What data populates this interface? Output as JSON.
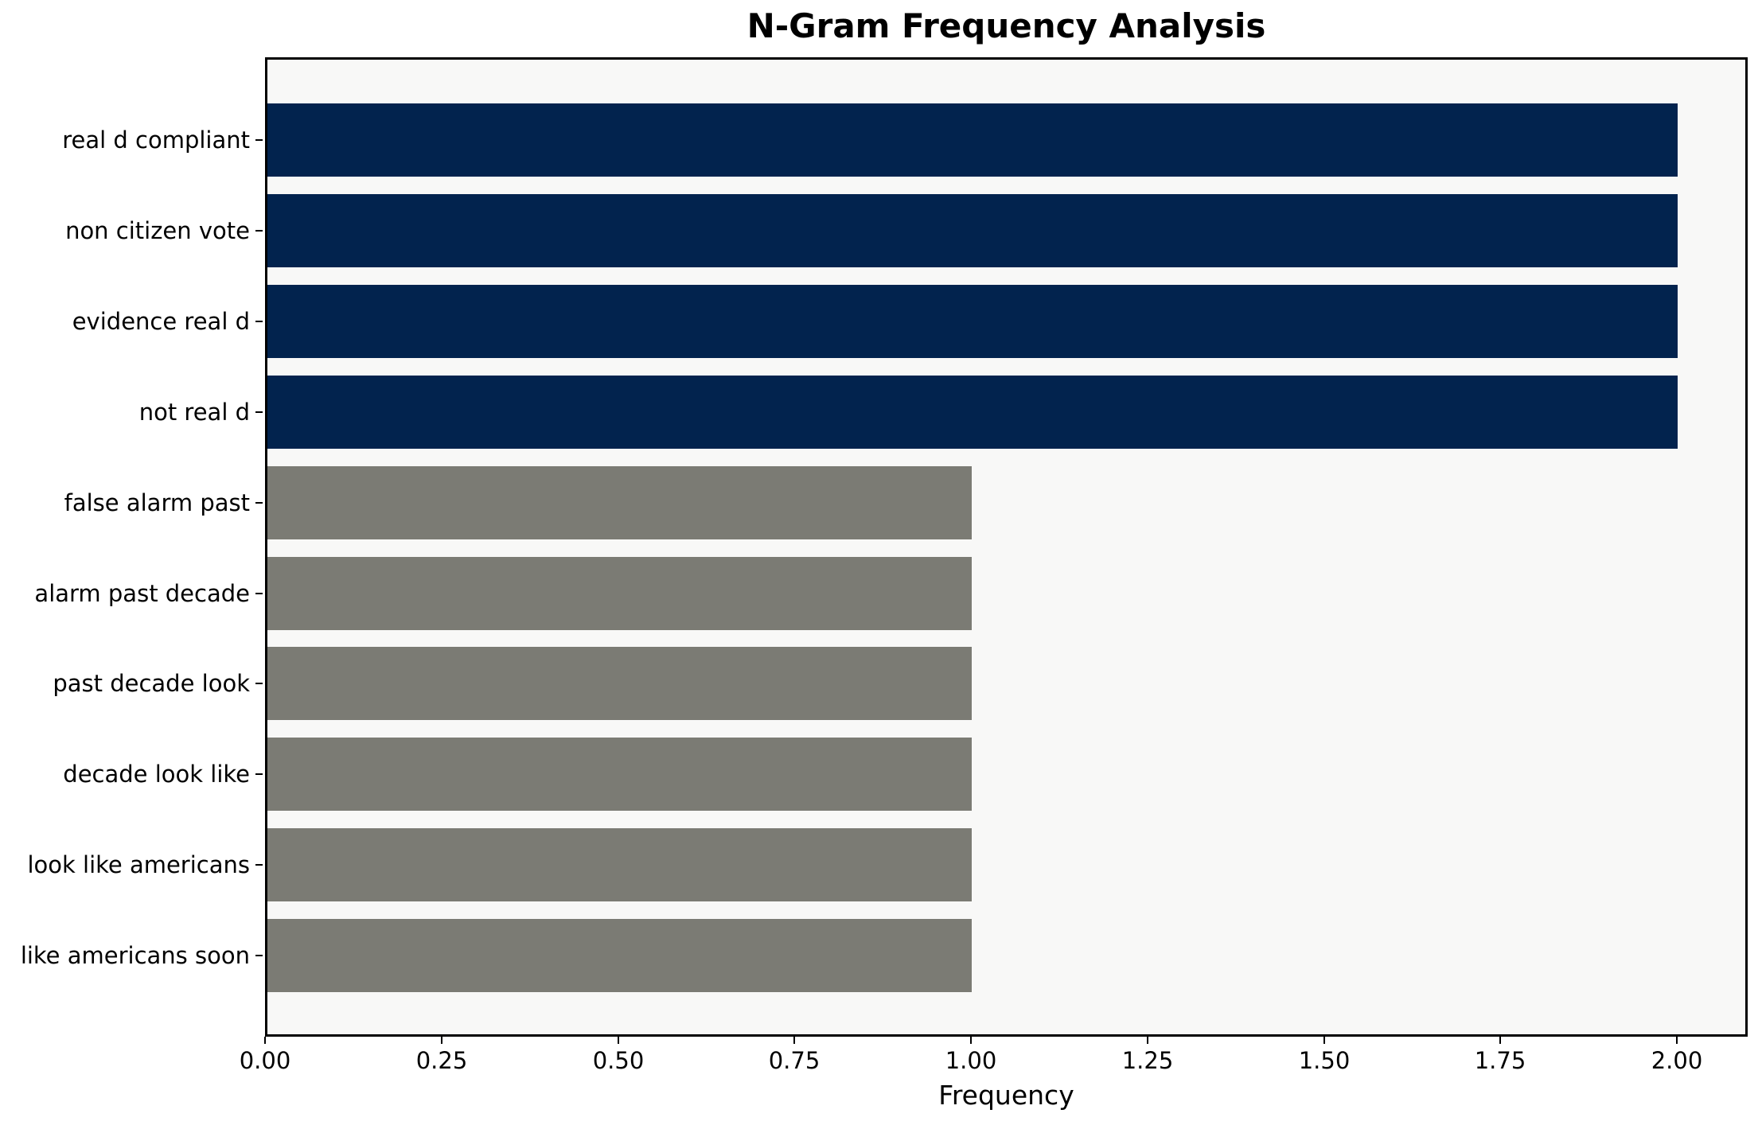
{
  "chart_data": {
    "type": "bar",
    "orientation": "horizontal",
    "title": "N-Gram Frequency Analysis",
    "xlabel": "Frequency",
    "ylabel": "",
    "categories": [
      "real d compliant",
      "non citizen vote",
      "evidence real d",
      "not real d",
      "false alarm past",
      "alarm past decade",
      "past decade look",
      "decade look like",
      "look like americans",
      "like americans soon"
    ],
    "values": [
      2,
      2,
      2,
      2,
      1,
      1,
      1,
      1,
      1,
      1
    ],
    "bar_colors": [
      "#02234e",
      "#02234e",
      "#02234e",
      "#02234e",
      "#7b7b74",
      "#7b7b74",
      "#7b7b74",
      "#7b7b74",
      "#7b7b74",
      "#7b7b74"
    ],
    "xlim": [
      0,
      2.1
    ],
    "xticks": [
      0,
      0.25,
      0.5,
      0.75,
      1.0,
      1.25,
      1.5,
      1.75,
      2.0
    ],
    "xtick_labels": [
      "0.00",
      "0.25",
      "0.50",
      "0.75",
      "1.00",
      "1.25",
      "1.50",
      "1.75",
      "2.00"
    ],
    "grid": false,
    "legend": null,
    "colors": {
      "highlight": "#02234e",
      "base": "#7b7b74",
      "plot_background": "#f8f8f7",
      "figure_background": "#ffffff",
      "spine": "#000000"
    }
  }
}
